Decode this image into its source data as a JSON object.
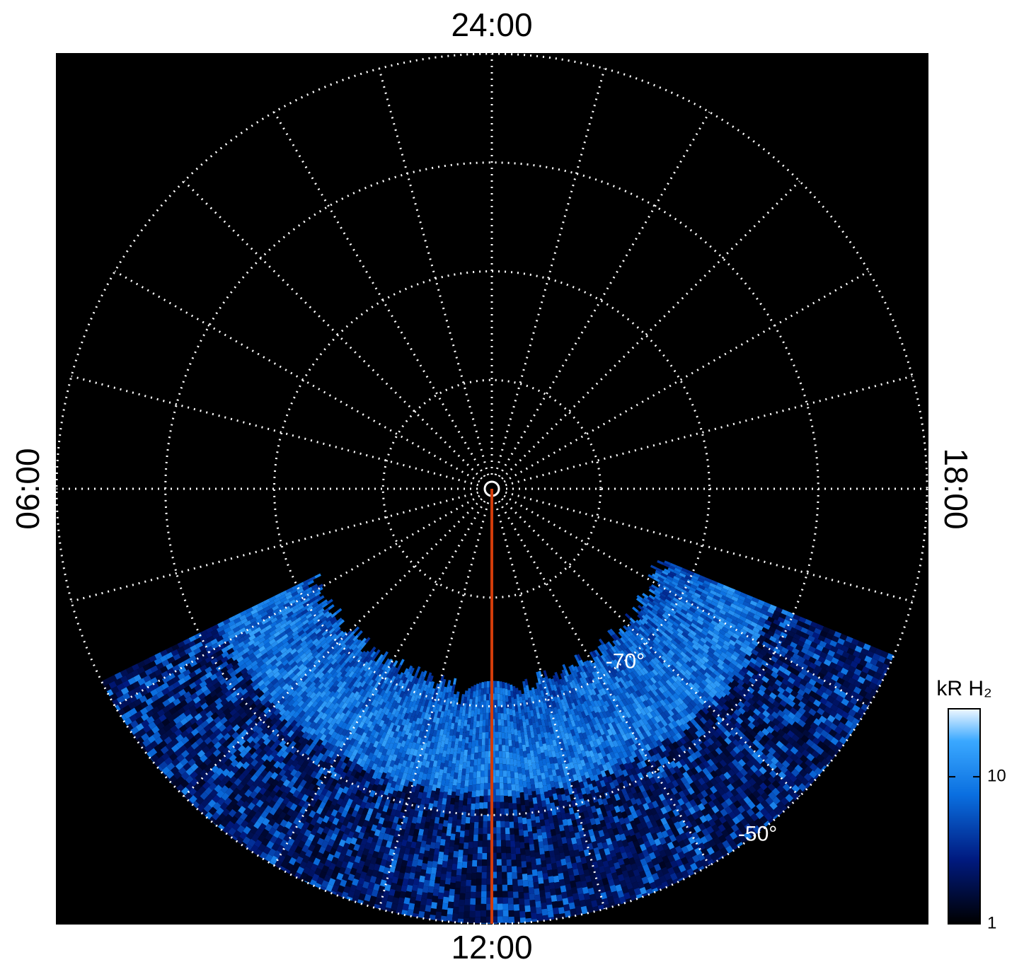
{
  "chart_data": {
    "type": "polar-image",
    "hour_ticks": [
      {
        "value": 0,
        "label": "24:00"
      },
      {
        "value": 6,
        "label": "06:00"
      },
      {
        "value": 12,
        "label": "12:00"
      },
      {
        "value": 18,
        "label": "18:00"
      }
    ],
    "lat_lim": [
      -90,
      -50
    ],
    "lat_grid": [
      -80,
      -70,
      -60,
      -50
    ],
    "lat_labels": [
      {
        "value": -70,
        "label": "-70°"
      },
      {
        "value": -50,
        "label": "-50°"
      }
    ],
    "grid": true,
    "meridian": {
      "value": 12,
      "color": "#d23c0a"
    },
    "colorbar": {
      "label": "kR H₂",
      "lim": [
        1,
        29
      ],
      "ticks": [
        1,
        10
      ],
      "log": true
    }
  }
}
